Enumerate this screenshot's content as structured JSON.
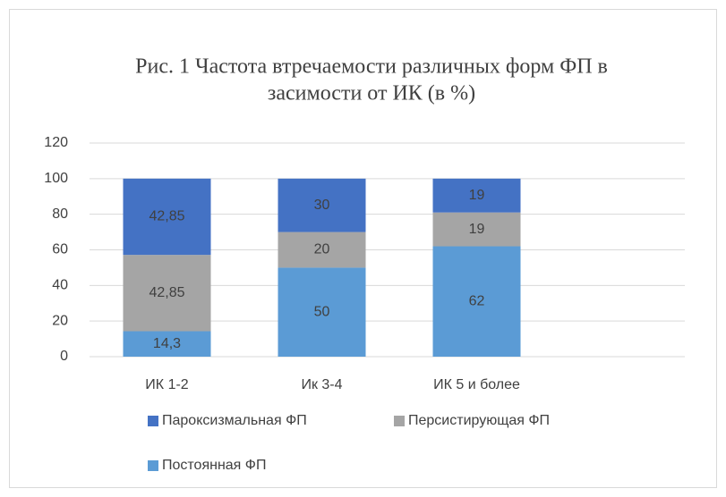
{
  "chart_data": {
    "type": "stacked_bar",
    "title": [
      "Рис. 1 Частота втречаемости различных форм ФП в",
      "засимости от ИК (в %)"
    ],
    "categories": [
      "ИК 1-2",
      "Ик 3-4",
      "ИК 5 и более"
    ],
    "series": [
      {
        "name": "Постоянная ФП",
        "color": "#5b9bd5",
        "values": [
          14.3,
          50,
          62
        ],
        "value_labels": [
          "14,3",
          "50",
          "62"
        ]
      },
      {
        "name": "Персистирующая ФП",
        "color": "#a5a5a5",
        "values": [
          42.85,
          20,
          19
        ],
        "value_labels": [
          "42,85",
          "20",
          "19"
        ]
      },
      {
        "name": "Пароксизмальная ФП",
        "color": "#4472c4",
        "values": [
          42.85,
          30,
          19
        ],
        "value_labels": [
          "42,85",
          "30",
          "19"
        ]
      }
    ],
    "ylim": [
      0,
      120
    ],
    "yticks": [
      0,
      20,
      40,
      60,
      80,
      100,
      120
    ],
    "grid": true,
    "legend": "bottom"
  }
}
